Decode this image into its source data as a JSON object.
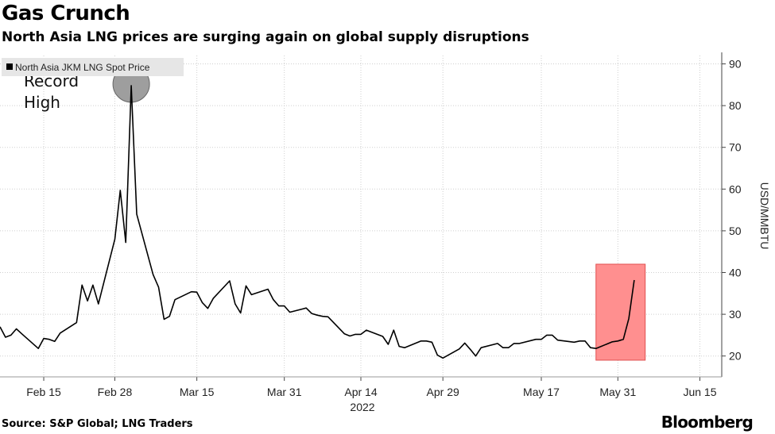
{
  "header": {
    "title": "Gas Crunch",
    "subtitle": "North Asia LNG prices are surging again on global supply disruptions"
  },
  "footer": {
    "source": "Source: S&P Global; LNG Traders",
    "brand": "Bloomberg"
  },
  "chart_data": {
    "type": "line",
    "title": "Gas Crunch",
    "subtitle": "North Asia LNG prices are surging again on global supply disruptions",
    "ylabel": "USD/MMBTU",
    "xlabel": "",
    "year_label": "2022",
    "ylim": [
      15,
      92
    ],
    "yticks": [
      20,
      30,
      40,
      50,
      60,
      70,
      80,
      90
    ],
    "xlim": [
      "2022-02-07",
      "2022-06-19"
    ],
    "xticks": [
      {
        "date": "2022-02-15",
        "label": "Feb 15"
      },
      {
        "date": "2022-02-28",
        "label": "Feb 28"
      },
      {
        "date": "2022-03-15",
        "label": "Mar 15"
      },
      {
        "date": "2022-03-31",
        "label": "Mar 31"
      },
      {
        "date": "2022-04-14",
        "label": "Apr 14"
      },
      {
        "date": "2022-04-29",
        "label": "Apr 29"
      },
      {
        "date": "2022-05-17",
        "label": "May 17"
      },
      {
        "date": "2022-05-31",
        "label": "May 31"
      },
      {
        "date": "2022-06-15",
        "label": "Jun 15"
      }
    ],
    "grid": true,
    "legend_position": "top-left",
    "series": [
      {
        "name": "North Asia JKM LNG Spot Price",
        "color": "#000000",
        "points": [
          [
            "2022-02-07",
            27.0
          ],
          [
            "2022-02-08",
            24.5
          ],
          [
            "2022-02-09",
            25.0
          ],
          [
            "2022-02-10",
            26.5
          ],
          [
            "2022-02-11",
            25.3
          ],
          [
            "2022-02-14",
            21.8
          ],
          [
            "2022-02-15",
            24.2
          ],
          [
            "2022-02-16",
            24.0
          ],
          [
            "2022-02-17",
            23.5
          ],
          [
            "2022-02-18",
            25.5
          ],
          [
            "2022-02-21",
            28.0
          ],
          [
            "2022-02-22",
            37.0
          ],
          [
            "2022-02-23",
            33.2
          ],
          [
            "2022-02-24",
            37.0
          ],
          [
            "2022-02-25",
            32.5
          ],
          [
            "2022-02-28",
            48.0
          ],
          [
            "2022-03-01",
            59.7
          ],
          [
            "2022-03-02",
            47.2
          ],
          [
            "2022-03-03",
            84.8
          ],
          [
            "2022-03-04",
            54.0
          ],
          [
            "2022-03-07",
            39.5
          ],
          [
            "2022-03-08",
            36.5
          ],
          [
            "2022-03-09",
            28.8
          ],
          [
            "2022-03-10",
            29.5
          ],
          [
            "2022-03-11",
            33.5
          ],
          [
            "2022-03-14",
            35.4
          ],
          [
            "2022-03-15",
            35.3
          ],
          [
            "2022-03-16",
            32.8
          ],
          [
            "2022-03-17",
            31.4
          ],
          [
            "2022-03-18",
            33.8
          ],
          [
            "2022-03-21",
            38.0
          ],
          [
            "2022-03-22",
            32.5
          ],
          [
            "2022-03-23",
            30.3
          ],
          [
            "2022-03-24",
            36.8
          ],
          [
            "2022-03-25",
            34.7
          ],
          [
            "2022-03-28",
            36.0
          ],
          [
            "2022-03-29",
            33.5
          ],
          [
            "2022-03-30",
            32.0
          ],
          [
            "2022-03-31",
            32.0
          ],
          [
            "2022-04-01",
            30.5
          ],
          [
            "2022-04-04",
            31.5
          ],
          [
            "2022-04-05",
            30.2
          ],
          [
            "2022-04-06",
            29.8
          ],
          [
            "2022-04-07",
            29.5
          ],
          [
            "2022-04-08",
            29.4
          ],
          [
            "2022-04-11",
            25.3
          ],
          [
            "2022-04-12",
            24.8
          ],
          [
            "2022-04-13",
            25.2
          ],
          [
            "2022-04-14",
            25.2
          ],
          [
            "2022-04-15",
            26.2
          ],
          [
            "2022-04-18",
            24.7
          ],
          [
            "2022-04-19",
            22.8
          ],
          [
            "2022-04-20",
            26.2
          ],
          [
            "2022-04-21",
            22.3
          ],
          [
            "2022-04-22",
            22.0
          ],
          [
            "2022-04-25",
            23.6
          ],
          [
            "2022-04-26",
            23.6
          ],
          [
            "2022-04-27",
            23.3
          ],
          [
            "2022-04-28",
            20.2
          ],
          [
            "2022-04-29",
            19.5
          ],
          [
            "2022-05-02",
            21.7
          ],
          [
            "2022-05-03",
            23.1
          ],
          [
            "2022-05-04",
            21.6
          ],
          [
            "2022-05-05",
            20.0
          ],
          [
            "2022-05-06",
            22.0
          ],
          [
            "2022-05-09",
            23.0
          ],
          [
            "2022-05-10",
            22.0
          ],
          [
            "2022-05-11",
            22.0
          ],
          [
            "2022-05-12",
            23.0
          ],
          [
            "2022-05-13",
            23.0
          ],
          [
            "2022-05-16",
            24.0
          ],
          [
            "2022-05-17",
            24.0
          ],
          [
            "2022-05-18",
            25.0
          ],
          [
            "2022-05-19",
            25.0
          ],
          [
            "2022-05-20",
            23.8
          ],
          [
            "2022-05-23",
            23.3
          ],
          [
            "2022-05-24",
            23.6
          ],
          [
            "2022-05-25",
            23.6
          ],
          [
            "2022-05-26",
            22.0
          ],
          [
            "2022-05-27",
            21.8
          ],
          [
            "2022-05-30",
            23.4
          ],
          [
            "2022-05-31",
            23.6
          ],
          [
            "2022-06-01",
            24.0
          ],
          [
            "2022-06-02",
            29.0
          ],
          [
            "2022-06-03",
            38.2
          ]
        ]
      }
    ],
    "annotations": [
      {
        "type": "circle",
        "label": [
          "Record",
          "High"
        ],
        "date": "2022-03-03",
        "value": 84.8,
        "fill": "#9e9e9e"
      },
      {
        "type": "highlight",
        "date_start": "2022-05-27",
        "date_end": "2022-06-05",
        "value_start": 19.0,
        "value_end": 42.0,
        "fill": "#ff8f8f"
      }
    ]
  }
}
